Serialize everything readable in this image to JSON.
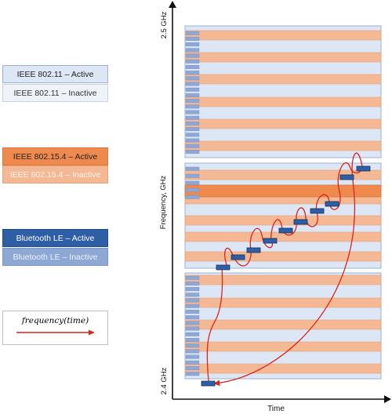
{
  "legend": {
    "wifi_active": "IEEE 802.11 – Active",
    "wifi_inactive": "IEEE 802.11 – Inactive",
    "zigbee_active": "IEEE 802.15.4 – Active",
    "zigbee_inactive": "IEEE 802.15.4 – Inactive",
    "ble_active": "Bluetooth LE – Active",
    "ble_inactive": "Bluetooth LE – Inactive",
    "trajectory_label": "frequency(time)"
  },
  "axes": {
    "x_label": "Time",
    "y_label": "Frequency, GHz",
    "y_top_tick": "2.5 GHz",
    "y_bottom_tick": "2.4 GHz"
  },
  "colors": {
    "wifi_active": "#dce6f4",
    "wifi_inactive": "#eef2f9",
    "wifi_border": "#9db3d6",
    "zigbee_active": "#ee8a4e",
    "zigbee_inactive": "#f4b894",
    "zigbee_border": "#d9773c",
    "ble_active": "#2e5fa6",
    "ble_inactive": "#8ea8d6",
    "trajectory": "#d9261c"
  },
  "icons": {
    "trajectory_arrow": "red-arrow-icon"
  }
}
